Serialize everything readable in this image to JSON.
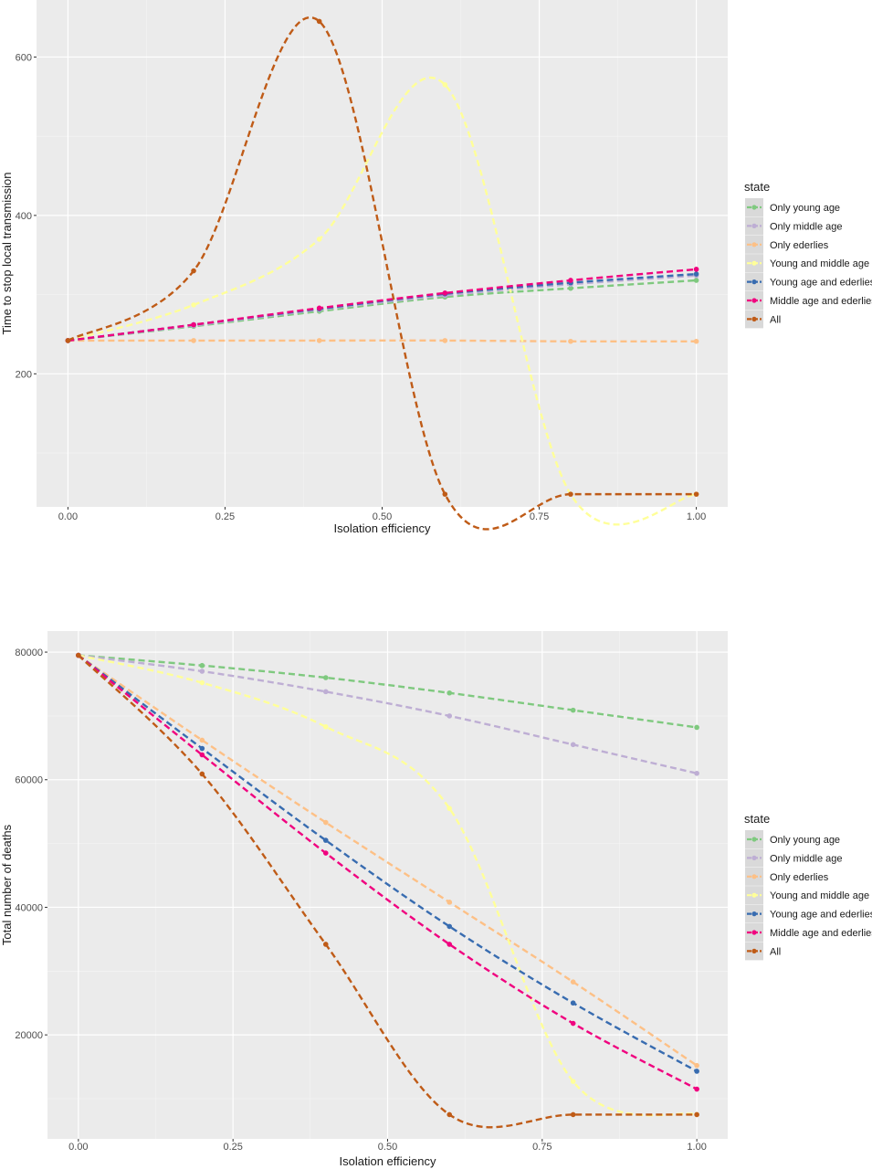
{
  "colors": {
    "panel": "#EBEBEB",
    "grid_major": "#FFFFFF",
    "grid_minor": "#F5F5F5",
    "legend_key_bg": "#D9D9D9"
  },
  "chart_data": [
    {
      "type": "line",
      "xlabel": "Isolation efficiency",
      "ylabel": "Time to stop local transmission",
      "xlim": [
        -0.05,
        1.05
      ],
      "ylim": [
        32,
        672
      ],
      "x_ticks": [
        0,
        0.25,
        0.5,
        0.75,
        1
      ],
      "x_tick_labels": [
        "0.00",
        "0.25",
        "0.50",
        "0.75",
        "1.00"
      ],
      "y_ticks": [
        200,
        400,
        600
      ],
      "y_tick_labels": [
        "200",
        "400",
        "600"
      ],
      "legend": {
        "title": "state",
        "position": "right",
        "entries": [
          "Only young age",
          "Only middle age",
          "Only ederlies",
          "Young and middle age",
          "Young age and ederlies",
          "Middle age and ederlies",
          "All"
        ]
      },
      "x": [
        0,
        0.2,
        0.4,
        0.6,
        0.8,
        1.0
      ],
      "series": [
        {
          "name": "Only young age",
          "color": "#7FC97F",
          "values": [
            242,
            260,
            279,
            297,
            308,
            318
          ]
        },
        {
          "name": "Only middle age",
          "color": "#BEAED4",
          "values": [
            242,
            261,
            281,
            299,
            313,
            324
          ]
        },
        {
          "name": "Only ederlies",
          "color": "#FDC086",
          "values": [
            242,
            242,
            242,
            242,
            241,
            241
          ]
        },
        {
          "name": "Young and middle age",
          "color": "#FFFF99",
          "values": [
            242,
            287,
            370,
            565,
            48,
            48
          ]
        },
        {
          "name": "Young age and ederlies",
          "color": "#386CB0",
          "values": [
            242,
            262,
            282,
            301,
            315,
            326
          ]
        },
        {
          "name": "Middle age and ederlies",
          "color": "#F0027F",
          "values": [
            242,
            262,
            283,
            302,
            318,
            332
          ]
        },
        {
          "name": "All",
          "color": "#BF5B17",
          "values": [
            242,
            330,
            645,
            48,
            48,
            48
          ]
        }
      ]
    },
    {
      "type": "line",
      "xlabel": "Isolation efficiency",
      "ylabel": "Total number of deaths",
      "xlim": [
        -0.05,
        1.05
      ],
      "ylim": [
        3700,
        83300
      ],
      "x_ticks": [
        0,
        0.25,
        0.5,
        0.75,
        1
      ],
      "x_tick_labels": [
        "0.00",
        "0.25",
        "0.50",
        "0.75",
        "1.00"
      ],
      "y_ticks": [
        20000,
        40000,
        60000,
        80000
      ],
      "y_tick_labels": [
        "20000",
        "40000",
        "60000",
        "80000"
      ],
      "legend": {
        "title": "state",
        "position": "right",
        "entries": [
          "Only young age",
          "Only middle age",
          "Only ederlies",
          "Young and middle age",
          "Young age and ederlies",
          "Middle age and ederlies",
          "All"
        ]
      },
      "x": [
        0,
        0.2,
        0.4,
        0.6,
        0.8,
        1.0
      ],
      "series": [
        {
          "name": "Only young age",
          "color": "#7FC97F",
          "values": [
            79500,
            77900,
            76000,
            73600,
            70900,
            68200
          ]
        },
        {
          "name": "Only middle age",
          "color": "#BEAED4",
          "values": [
            79500,
            77000,
            73800,
            70000,
            65500,
            61000
          ]
        },
        {
          "name": "Only ederlies",
          "color": "#FDC086",
          "values": [
            79500,
            66200,
            53300,
            40800,
            28300,
            15200
          ]
        },
        {
          "name": "Young and middle age",
          "color": "#FFFF99",
          "values": [
            79500,
            75200,
            68300,
            55500,
            12700,
            7500
          ]
        },
        {
          "name": "Young age and ederlies",
          "color": "#386CB0",
          "values": [
            79500,
            64900,
            50500,
            37000,
            25000,
            14300
          ]
        },
        {
          "name": "Middle age and ederlies",
          "color": "#F0027F",
          "values": [
            79500,
            63900,
            48500,
            34200,
            21800,
            11500
          ]
        },
        {
          "name": "All",
          "color": "#BF5B17",
          "values": [
            79500,
            60900,
            34200,
            7500,
            7500,
            7500
          ]
        }
      ]
    }
  ]
}
